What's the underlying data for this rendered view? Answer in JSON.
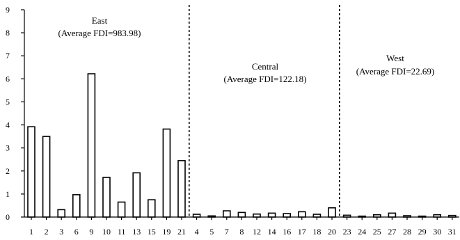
{
  "chart_data": {
    "type": "bar",
    "title": "",
    "xlabel": "",
    "ylabel": "",
    "ylim": [
      0,
      9
    ],
    "y_ticks": [
      0,
      1,
      2,
      3,
      4,
      5,
      6,
      7,
      8,
      9
    ],
    "grid": false,
    "categories": [
      "1",
      "2",
      "3",
      "6",
      "9",
      "10",
      "11",
      "13",
      "15",
      "19",
      "21",
      "4",
      "5",
      "7",
      "8",
      "12",
      "14",
      "16",
      "17",
      "18",
      "20",
      "23",
      "24",
      "25",
      "27",
      "28",
      "29",
      "30",
      "31"
    ],
    "values": [
      3.92,
      3.5,
      0.32,
      0.97,
      6.22,
      1.72,
      0.65,
      1.92,
      0.75,
      3.82,
      2.45,
      0.12,
      0.05,
      0.27,
      0.2,
      0.13,
      0.17,
      0.15,
      0.23,
      0.12,
      0.4,
      0.08,
      0.04,
      0.1,
      0.17,
      0.06,
      0.04,
      0.1,
      0.07
    ],
    "groups": [
      {
        "name": "East",
        "average_label": "(Average FDI=983.98)",
        "start": 0,
        "count": 11
      },
      {
        "name": "Central",
        "average_label": "(Average FDI=122.18)",
        "start": 11,
        "count": 10
      },
      {
        "name": "West",
        "average_label": "(Average FDI=22.69)",
        "start": 21,
        "count": 8
      }
    ]
  }
}
